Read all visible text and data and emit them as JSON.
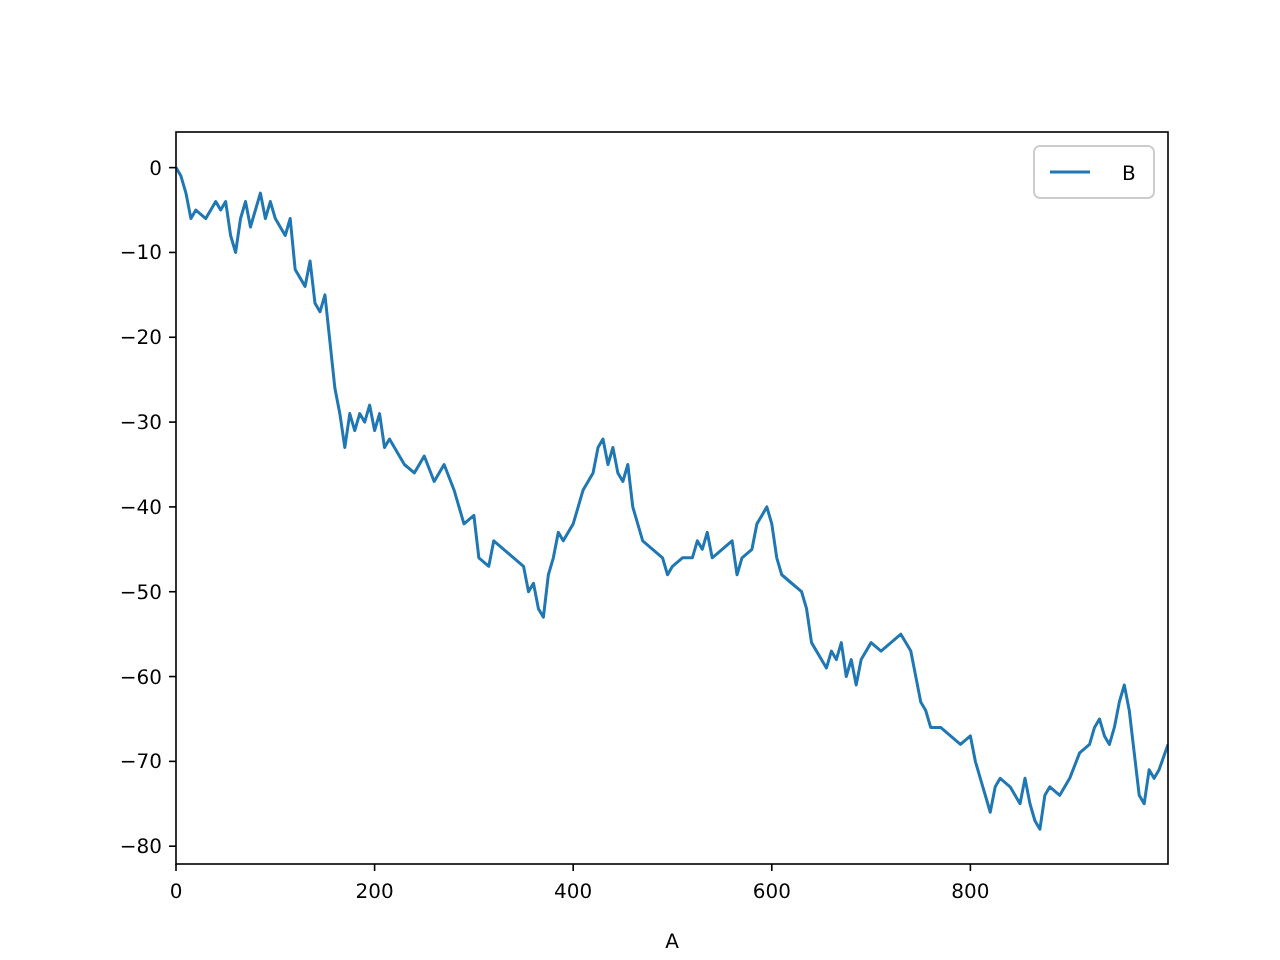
{
  "chart_data": {
    "type": "line",
    "xlabel": "A",
    "xlim": [
      0,
      999
    ],
    "ylim": [
      -82.1,
      4.2
    ],
    "xticks": [
      0,
      200,
      400,
      600,
      800
    ],
    "yticks": [
      0,
      -10,
      -20,
      -30,
      -40,
      -50,
      -60,
      -70,
      -80
    ],
    "legend": "top right",
    "grid": false,
    "series": [
      {
        "name": "B",
        "color": "#1f77b4",
        "x": [
          0,
          5,
          10,
          15,
          20,
          30,
          40,
          45,
          50,
          55,
          60,
          65,
          70,
          75,
          80,
          85,
          90,
          95,
          100,
          110,
          115,
          120,
          130,
          135,
          140,
          145,
          150,
          160,
          165,
          170,
          175,
          180,
          185,
          190,
          195,
          200,
          205,
          210,
          215,
          220,
          230,
          240,
          250,
          260,
          270,
          280,
          290,
          300,
          305,
          315,
          320,
          330,
          340,
          350,
          355,
          360,
          365,
          370,
          375,
          380,
          385,
          390,
          395,
          400,
          410,
          420,
          425,
          430,
          435,
          440,
          445,
          450,
          455,
          460,
          465,
          470,
          480,
          490,
          495,
          500,
          510,
          520,
          525,
          530,
          535,
          540,
          550,
          560,
          565,
          570,
          580,
          585,
          590,
          595,
          600,
          605,
          610,
          620,
          630,
          635,
          640,
          650,
          655,
          660,
          665,
          670,
          675,
          680,
          685,
          690,
          700,
          710,
          720,
          730,
          740,
          745,
          750,
          755,
          760,
          770,
          780,
          790,
          800,
          805,
          810,
          815,
          820,
          825,
          830,
          840,
          850,
          855,
          860,
          865,
          870,
          875,
          880,
          890,
          900,
          910,
          920,
          925,
          930,
          935,
          940,
          945,
          950,
          955,
          960,
          965,
          970,
          975,
          980,
          985,
          990,
          999
        ],
        "values": [
          0,
          -1,
          -3,
          -6,
          -5,
          -6,
          -4,
          -5,
          -4,
          -8,
          -10,
          -6,
          -4,
          -7,
          -5,
          -3,
          -6,
          -4,
          -6,
          -8,
          -6,
          -12,
          -14,
          -11,
          -16,
          -17,
          -15,
          -26,
          -29,
          -33,
          -29,
          -31,
          -29,
          -30,
          -28,
          -31,
          -29,
          -33,
          -32,
          -33,
          -35,
          -36,
          -34,
          -37,
          -35,
          -38,
          -42,
          -41,
          -46,
          -47,
          -44,
          -45,
          -46,
          -47,
          -50,
          -49,
          -52,
          -53,
          -48,
          -46,
          -43,
          -44,
          -43,
          -42,
          -38,
          -36,
          -33,
          -32,
          -35,
          -33,
          -36,
          -37,
          -35,
          -40,
          -42,
          -44,
          -45,
          -46,
          -48,
          -47,
          -46,
          -46,
          -44,
          -45,
          -43,
          -46,
          -45,
          -44,
          -48,
          -46,
          -45,
          -42,
          -41,
          -40,
          -42,
          -46,
          -48,
          -49,
          -50,
          -52,
          -56,
          -58,
          -59,
          -57,
          -58,
          -56,
          -60,
          -58,
          -61,
          -58,
          -56,
          -57,
          -56,
          -55,
          -57,
          -60,
          -63,
          -64,
          -66,
          -66,
          -67,
          -68,
          -67,
          -70,
          -72,
          -74,
          -76,
          -73,
          -72,
          -73,
          -75,
          -72,
          -75,
          -77,
          -78,
          -74,
          -73,
          -74,
          -72,
          -69,
          -68,
          -66,
          -65,
          -67,
          -68,
          -66,
          -63,
          -61,
          -64,
          -69,
          -74,
          -75,
          -71,
          -72,
          -71,
          -68
        ]
      }
    ]
  }
}
